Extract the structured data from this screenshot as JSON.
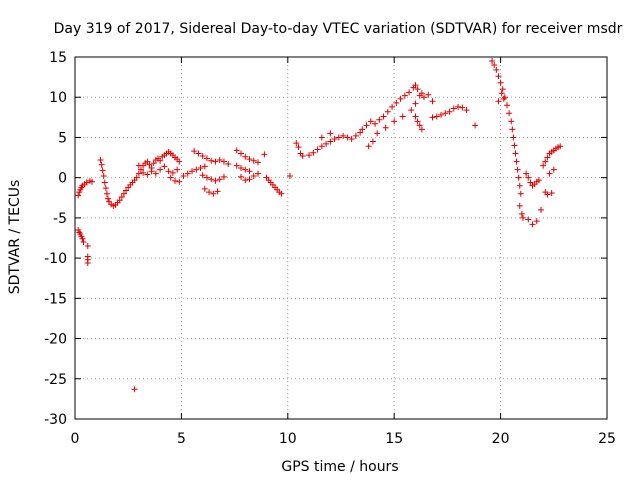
{
  "chart_data": {
    "type": "scatter",
    "title": "Day 319 of 2017, Sidereal Day-to-day VTEC variation (SDTVAR) for receiver msdr",
    "xlabel": "GPS time / hours",
    "ylabel": "SDTVAR / TECUs",
    "xlim": [
      0,
      25
    ],
    "ylim": [
      -30,
      15
    ],
    "xticks": [
      0,
      5,
      10,
      15,
      20,
      25
    ],
    "yticks": [
      -30,
      -25,
      -20,
      -15,
      -10,
      -5,
      0,
      5,
      10,
      15
    ],
    "xtick_labels": [
      "0",
      "5",
      "10",
      "15",
      "20",
      "25"
    ],
    "ytick_labels": [
      "-30",
      "-25",
      "-20",
      "-15",
      "-10",
      "-5",
      "0",
      "5",
      "10",
      "15"
    ],
    "grid": true,
    "marker": "+",
    "color": "#e00000",
    "series": [
      {
        "name": "SDTVAR",
        "points": [
          [
            0.15,
            -2.2
          ],
          [
            0.2,
            -1.8
          ],
          [
            0.25,
            -1.5
          ],
          [
            0.3,
            -1.2
          ],
          [
            0.35,
            -1.0
          ],
          [
            0.45,
            -0.8
          ],
          [
            0.55,
            -0.6
          ],
          [
            0.7,
            -0.4
          ],
          [
            0.8,
            -0.5
          ],
          [
            0.15,
            -6.5
          ],
          [
            0.2,
            -6.8
          ],
          [
            0.25,
            -7.0
          ],
          [
            0.3,
            -7.3
          ],
          [
            0.35,
            -7.6
          ],
          [
            0.4,
            -8.0
          ],
          [
            0.6,
            -8.5
          ],
          [
            0.6,
            -9.8
          ],
          [
            0.6,
            -10.2
          ],
          [
            0.6,
            -10.6
          ],
          [
            1.2,
            2.2
          ],
          [
            1.25,
            1.6
          ],
          [
            1.3,
            0.9
          ],
          [
            1.35,
            0.2
          ],
          [
            1.4,
            -0.6
          ],
          [
            1.45,
            -1.3
          ],
          [
            1.5,
            -2.0
          ],
          [
            1.55,
            -2.6
          ],
          [
            1.6,
            -3.0
          ],
          [
            1.7,
            -3.3
          ],
          [
            1.8,
            -3.5
          ],
          [
            1.9,
            -3.4
          ],
          [
            2.0,
            -3.1
          ],
          [
            2.1,
            -2.8
          ],
          [
            2.2,
            -2.4
          ],
          [
            2.3,
            -2.0
          ],
          [
            2.4,
            -1.6
          ],
          [
            2.5,
            -1.2
          ],
          [
            2.6,
            -0.9
          ],
          [
            2.7,
            -0.6
          ],
          [
            2.8,
            -0.3
          ],
          [
            2.9,
            0.0
          ],
          [
            2.8,
            -26.3
          ],
          [
            3.0,
            0.5
          ],
          [
            3.1,
            1.0
          ],
          [
            3.2,
            1.5
          ],
          [
            3.3,
            1.8
          ],
          [
            3.4,
            2.0
          ],
          [
            3.5,
            1.6
          ],
          [
            3.6,
            1.2
          ],
          [
            3.7,
            1.8
          ],
          [
            3.8,
            2.2
          ],
          [
            3.9,
            2.4
          ],
          [
            4.0,
            2.1
          ],
          [
            4.1,
            2.6
          ],
          [
            4.2,
            2.8
          ],
          [
            4.3,
            3.0
          ],
          [
            4.4,
            3.2
          ],
          [
            4.5,
            3.0
          ],
          [
            4.6,
            2.8
          ],
          [
            4.7,
            2.5
          ],
          [
            4.8,
            2.3
          ],
          [
            4.9,
            2.0
          ],
          [
            3.0,
            1.5
          ],
          [
            3.2,
            0.6
          ],
          [
            3.4,
            0.4
          ],
          [
            3.6,
            0.8
          ],
          [
            3.8,
            0.5
          ],
          [
            4.0,
            1.0
          ],
          [
            4.2,
            1.4
          ],
          [
            4.4,
            0.8
          ],
          [
            4.6,
            0.6
          ],
          [
            4.8,
            1.0
          ],
          [
            4.5,
            0.0
          ],
          [
            4.7,
            -0.4
          ],
          [
            4.9,
            -0.5
          ],
          [
            5.1,
            0.2
          ],
          [
            5.3,
            0.5
          ],
          [
            5.5,
            0.8
          ],
          [
            5.7,
            1.0
          ],
          [
            5.9,
            1.2
          ],
          [
            6.1,
            1.4
          ],
          [
            5.6,
            3.3
          ],
          [
            5.8,
            3.0
          ],
          [
            6.0,
            2.7
          ],
          [
            6.2,
            2.4
          ],
          [
            6.4,
            2.1
          ],
          [
            6.6,
            2.0
          ],
          [
            6.8,
            2.2
          ],
          [
            7.0,
            2.0
          ],
          [
            7.2,
            1.7
          ],
          [
            6.0,
            0.3
          ],
          [
            6.2,
            0.0
          ],
          [
            6.4,
            -0.2
          ],
          [
            6.6,
            -0.4
          ],
          [
            6.8,
            -0.2
          ],
          [
            7.0,
            0.1
          ],
          [
            6.1,
            -1.4
          ],
          [
            6.3,
            -1.8
          ],
          [
            6.5,
            -2.0
          ],
          [
            6.7,
            -1.7
          ],
          [
            7.6,
            3.4
          ],
          [
            7.8,
            3.0
          ],
          [
            8.0,
            2.6
          ],
          [
            8.2,
            2.3
          ],
          [
            8.4,
            2.1
          ],
          [
            8.6,
            1.9
          ],
          [
            7.6,
            1.5
          ],
          [
            7.8,
            1.2
          ],
          [
            8.0,
            1.0
          ],
          [
            8.2,
            0.8
          ],
          [
            7.8,
            0.1
          ],
          [
            8.0,
            -0.3
          ],
          [
            8.2,
            -0.2
          ],
          [
            8.4,
            0.2
          ],
          [
            8.6,
            0.5
          ],
          [
            8.9,
            2.9
          ],
          [
            9.0,
            0.0
          ],
          [
            9.1,
            -0.3
          ],
          [
            9.2,
            -0.6
          ],
          [
            9.3,
            -0.9
          ],
          [
            9.4,
            -1.2
          ],
          [
            9.5,
            -1.5
          ],
          [
            9.6,
            -1.8
          ],
          [
            9.7,
            -2.0
          ],
          [
            10.1,
            0.2
          ],
          [
            10.4,
            4.3
          ],
          [
            10.5,
            3.8
          ],
          [
            10.6,
            3.0
          ],
          [
            10.7,
            2.7
          ],
          [
            11.0,
            2.8
          ],
          [
            11.2,
            3.1
          ],
          [
            11.4,
            3.5
          ],
          [
            11.6,
            3.9
          ],
          [
            11.8,
            4.2
          ],
          [
            12.0,
            4.5
          ],
          [
            12.2,
            4.8
          ],
          [
            12.4,
            5.0
          ],
          [
            12.6,
            5.2
          ],
          [
            12.8,
            5.0
          ],
          [
            13.0,
            4.8
          ],
          [
            13.2,
            5.2
          ],
          [
            13.4,
            5.6
          ],
          [
            11.6,
            5.0
          ],
          [
            12.0,
            5.5
          ],
          [
            13.5,
            6.0
          ],
          [
            13.7,
            6.5
          ],
          [
            13.9,
            7.0
          ],
          [
            14.1,
            6.7
          ],
          [
            14.3,
            7.2
          ],
          [
            14.5,
            7.6
          ],
          [
            14.7,
            8.2
          ],
          [
            14.9,
            8.8
          ],
          [
            15.1,
            9.3
          ],
          [
            15.3,
            9.8
          ],
          [
            15.5,
            10.2
          ],
          [
            15.7,
            10.6
          ],
          [
            14.0,
            4.5
          ],
          [
            13.8,
            3.9
          ],
          [
            14.2,
            5.5
          ],
          [
            14.6,
            6.2
          ],
          [
            15.0,
            7.0
          ],
          [
            15.4,
            7.6
          ],
          [
            15.8,
            8.4
          ],
          [
            16.0,
            9.2
          ],
          [
            15.9,
            11.2
          ],
          [
            16.0,
            11.5
          ],
          [
            16.1,
            11.0
          ],
          [
            16.2,
            10.2
          ],
          [
            16.3,
            10.5
          ],
          [
            16.4,
            10.0
          ],
          [
            16.6,
            10.3
          ],
          [
            16.8,
            9.5
          ],
          [
            16.0,
            7.6
          ],
          [
            16.1,
            7.0
          ],
          [
            16.2,
            6.5
          ],
          [
            16.3,
            6.0
          ],
          [
            16.8,
            7.5
          ],
          [
            17.0,
            7.6
          ],
          [
            17.2,
            7.8
          ],
          [
            17.4,
            8.0
          ],
          [
            17.6,
            8.2
          ],
          [
            17.8,
            8.6
          ],
          [
            18.0,
            8.8
          ],
          [
            18.2,
            8.7
          ],
          [
            18.4,
            8.4
          ],
          [
            18.8,
            6.5
          ],
          [
            19.6,
            14.5
          ],
          [
            19.7,
            14.0
          ],
          [
            19.8,
            13.4
          ],
          [
            19.9,
            12.6
          ],
          [
            20.0,
            11.8
          ],
          [
            20.1,
            11.0
          ],
          [
            20.2,
            10.0
          ],
          [
            20.3,
            9.0
          ],
          [
            20.4,
            8.0
          ],
          [
            20.5,
            7.0
          ],
          [
            20.55,
            6.0
          ],
          [
            20.6,
            5.0
          ],
          [
            20.65,
            4.0
          ],
          [
            20.7,
            3.0
          ],
          [
            20.75,
            2.0
          ],
          [
            20.8,
            1.0
          ],
          [
            20.85,
            0.0
          ],
          [
            20.9,
            -1.0
          ],
          [
            20.95,
            -2.0
          ],
          [
            19.9,
            9.5
          ],
          [
            20.05,
            10.5
          ],
          [
            20.15,
            9.8
          ],
          [
            20.9,
            -3.5
          ],
          [
            21.0,
            -4.5
          ],
          [
            21.05,
            -5.0
          ],
          [
            21.2,
            0.5
          ],
          [
            21.3,
            0.0
          ],
          [
            21.4,
            -0.6
          ],
          [
            21.5,
            -1.0
          ],
          [
            21.6,
            -0.8
          ],
          [
            21.7,
            -0.5
          ],
          [
            21.8,
            -0.3
          ],
          [
            21.3,
            -5.2
          ],
          [
            21.5,
            -5.8
          ],
          [
            21.7,
            -5.4
          ],
          [
            21.9,
            -4.0
          ],
          [
            22.0,
            1.5
          ],
          [
            22.1,
            2.0
          ],
          [
            22.2,
            2.5
          ],
          [
            22.3,
            3.0
          ],
          [
            22.4,
            3.2
          ],
          [
            22.5,
            3.4
          ],
          [
            22.6,
            3.6
          ],
          [
            22.7,
            3.8
          ],
          [
            22.8,
            3.9
          ],
          [
            22.1,
            -1.8
          ],
          [
            22.2,
            -2.1
          ],
          [
            22.4,
            -1.9
          ],
          [
            22.3,
            0.5
          ],
          [
            22.5,
            1.0
          ]
        ]
      }
    ]
  }
}
